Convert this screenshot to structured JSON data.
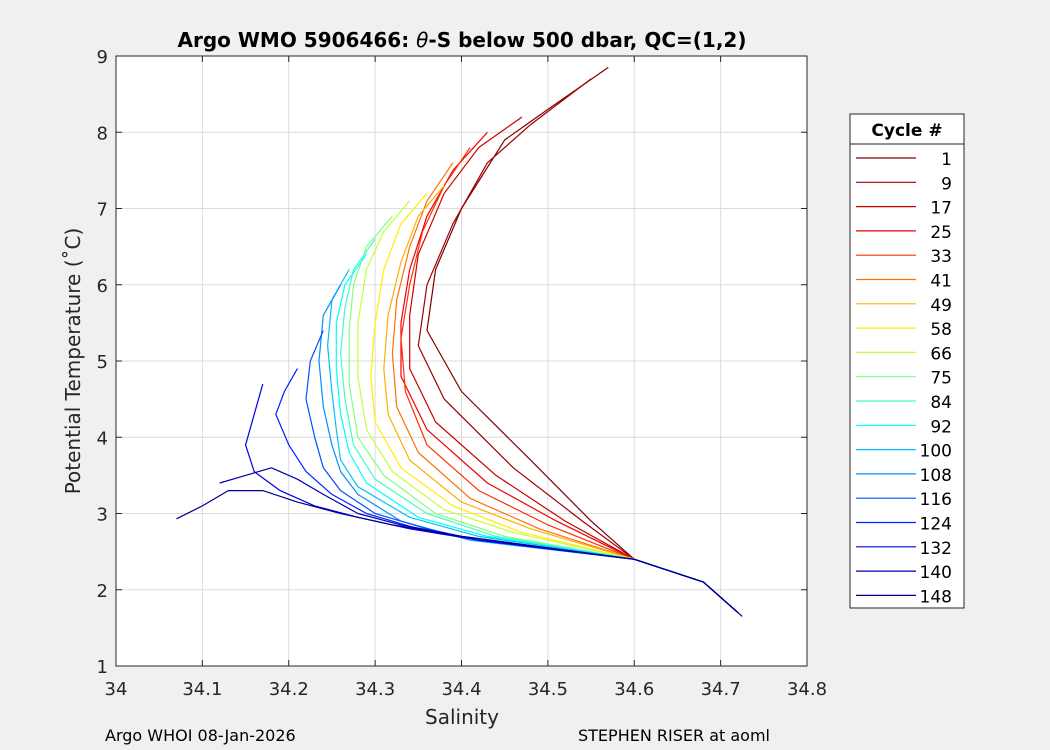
{
  "chart_data": {
    "type": "line",
    "title_prefix": "Argo WMO 5906466: ",
    "title_theta": "θ",
    "title_suffix": "-S below 500 dbar,  QC=(1,2)",
    "xlabel": "Salinity",
    "ylabel": "Potential Temperature (˚C)",
    "xlim": [
      34.0,
      34.8
    ],
    "ylim": [
      1,
      9
    ],
    "xticks": [
      "34",
      "34.1",
      "34.2",
      "34.3",
      "34.4",
      "34.5",
      "34.6",
      "34.7",
      "34.8"
    ],
    "yticks": [
      "1",
      "2",
      "3",
      "4",
      "5",
      "6",
      "7",
      "8",
      "9"
    ],
    "grid": true,
    "legend_title": "Cycle #",
    "legend_position": "right-outside",
    "legend_entries": [
      {
        "label": "1",
        "color": "#800000"
      },
      {
        "label": "9",
        "color": "#a00000"
      },
      {
        "label": "17",
        "color": "#c80000"
      },
      {
        "label": "25",
        "color": "#f00000"
      },
      {
        "label": "33",
        "color": "#ff3000"
      },
      {
        "label": "41",
        "color": "#ff7000"
      },
      {
        "label": "49",
        "color": "#ffb000"
      },
      {
        "label": "58",
        "color": "#ffee00"
      },
      {
        "label": "66",
        "color": "#c0ff40"
      },
      {
        "label": "75",
        "color": "#80ff80"
      },
      {
        "label": "84",
        "color": "#40ffc0"
      },
      {
        "label": "92",
        "color": "#00ffff"
      },
      {
        "label": "100",
        "color": "#00c0ff"
      },
      {
        "label": "108",
        "color": "#0090ff"
      },
      {
        "label": "116",
        "color": "#0050ff"
      },
      {
        "label": "124",
        "color": "#0020ff"
      },
      {
        "label": "132",
        "color": "#0000e0"
      },
      {
        "label": "140",
        "color": "#0000b0"
      },
      {
        "label": "148",
        "color": "#000090"
      }
    ],
    "series": [
      {
        "color": "#800000",
        "points": [
          [
            34.57,
            8.85
          ],
          [
            34.5,
            8.3
          ],
          [
            34.45,
            7.9
          ],
          [
            34.4,
            7.0
          ],
          [
            34.37,
            6.2
          ],
          [
            34.36,
            5.4
          ],
          [
            34.4,
            4.6
          ],
          [
            34.48,
            3.7
          ],
          [
            34.55,
            2.9
          ],
          [
            34.6,
            2.4
          ],
          [
            34.68,
            2.1
          ],
          [
            34.72,
            1.7
          ]
        ]
      },
      {
        "color": "#a00000",
        "points": [
          [
            34.55,
            8.7
          ],
          [
            34.48,
            8.1
          ],
          [
            34.43,
            7.6
          ],
          [
            34.39,
            6.8
          ],
          [
            34.36,
            6.0
          ],
          [
            34.35,
            5.2
          ],
          [
            34.38,
            4.5
          ],
          [
            34.46,
            3.6
          ],
          [
            34.54,
            2.9
          ],
          [
            34.6,
            2.4
          ],
          [
            34.68,
            2.1
          ],
          [
            34.72,
            1.7
          ]
        ]
      },
      {
        "color": "#c80000",
        "points": [
          [
            34.47,
            8.2
          ],
          [
            34.42,
            7.8
          ],
          [
            34.38,
            7.2
          ],
          [
            34.35,
            6.4
          ],
          [
            34.34,
            5.6
          ],
          [
            34.34,
            4.9
          ],
          [
            34.37,
            4.2
          ],
          [
            34.44,
            3.5
          ],
          [
            34.52,
            2.9
          ],
          [
            34.6,
            2.4
          ],
          [
            34.68,
            2.1
          ],
          [
            34.72,
            1.7
          ]
        ]
      },
      {
        "color": "#f00000",
        "points": [
          [
            34.43,
            8.0
          ],
          [
            34.39,
            7.5
          ],
          [
            34.36,
            6.9
          ],
          [
            34.34,
            6.2
          ],
          [
            34.33,
            5.5
          ],
          [
            34.33,
            4.8
          ],
          [
            34.36,
            4.1
          ],
          [
            34.43,
            3.4
          ],
          [
            34.51,
            2.9
          ],
          [
            34.6,
            2.4
          ],
          [
            34.68,
            2.1
          ],
          [
            34.72,
            1.7
          ]
        ]
      },
      {
        "color": "#ff3000",
        "points": [
          [
            34.41,
            7.8
          ],
          [
            34.38,
            7.3
          ],
          [
            34.355,
            6.7
          ],
          [
            34.34,
            6.0
          ],
          [
            34.33,
            5.3
          ],
          [
            34.335,
            4.6
          ],
          [
            34.36,
            3.9
          ],
          [
            34.42,
            3.3
          ],
          [
            34.5,
            2.85
          ],
          [
            34.6,
            2.4
          ],
          [
            34.68,
            2.1
          ],
          [
            34.72,
            1.7
          ]
        ]
      },
      {
        "color": "#ff7000",
        "points": [
          [
            34.39,
            7.6
          ],
          [
            34.36,
            7.1
          ],
          [
            34.34,
            6.5
          ],
          [
            34.325,
            5.8
          ],
          [
            34.32,
            5.1
          ],
          [
            34.325,
            4.4
          ],
          [
            34.35,
            3.8
          ],
          [
            34.41,
            3.2
          ],
          [
            34.49,
            2.8
          ],
          [
            34.6,
            2.4
          ],
          [
            34.68,
            2.1
          ],
          [
            34.72,
            1.7
          ]
        ]
      },
      {
        "color": "#ffb000",
        "points": [
          [
            34.38,
            7.3
          ],
          [
            34.35,
            6.9
          ],
          [
            34.33,
            6.3
          ],
          [
            34.315,
            5.6
          ],
          [
            34.31,
            4.9
          ],
          [
            34.315,
            4.3
          ],
          [
            34.34,
            3.7
          ],
          [
            34.4,
            3.15
          ],
          [
            34.48,
            2.8
          ],
          [
            34.6,
            2.4
          ],
          [
            34.68,
            2.1
          ],
          [
            34.72,
            1.7
          ]
        ]
      },
      {
        "color": "#ffee00",
        "points": [
          [
            34.36,
            7.2
          ],
          [
            34.33,
            6.8
          ],
          [
            34.31,
            6.2
          ],
          [
            34.3,
            5.5
          ],
          [
            34.295,
            4.8
          ],
          [
            34.3,
            4.2
          ],
          [
            34.33,
            3.6
          ],
          [
            34.39,
            3.1
          ],
          [
            34.47,
            2.75
          ],
          [
            34.6,
            2.4
          ],
          [
            34.68,
            2.1
          ],
          [
            34.72,
            1.7
          ]
        ]
      },
      {
        "color": "#c0ff40",
        "points": [
          [
            34.34,
            7.1
          ],
          [
            34.31,
            6.7
          ],
          [
            34.29,
            6.2
          ],
          [
            34.28,
            5.5
          ],
          [
            34.28,
            4.8
          ],
          [
            34.29,
            4.1
          ],
          [
            34.32,
            3.55
          ],
          [
            34.38,
            3.05
          ],
          [
            34.46,
            2.75
          ],
          [
            34.6,
            2.4
          ],
          [
            34.68,
            2.1
          ],
          [
            34.72,
            1.7
          ]
        ]
      },
      {
        "color": "#80ff80",
        "points": [
          [
            34.32,
            6.9
          ],
          [
            34.29,
            6.5
          ],
          [
            34.275,
            6.0
          ],
          [
            34.27,
            5.4
          ],
          [
            34.27,
            4.7
          ],
          [
            34.28,
            4.0
          ],
          [
            34.31,
            3.5
          ],
          [
            34.37,
            3.0
          ],
          [
            34.45,
            2.7
          ],
          [
            34.6,
            2.4
          ],
          [
            34.68,
            2.1
          ],
          [
            34.72,
            1.7
          ]
        ]
      },
      {
        "color": "#40ffc0",
        "points": [
          [
            34.3,
            6.6
          ],
          [
            34.275,
            6.2
          ],
          [
            34.265,
            5.7
          ],
          [
            34.26,
            5.1
          ],
          [
            34.265,
            4.5
          ],
          [
            34.275,
            3.9
          ],
          [
            34.3,
            3.45
          ],
          [
            34.36,
            3.0
          ],
          [
            34.44,
            2.7
          ],
          [
            34.6,
            2.4
          ],
          [
            34.68,
            2.1
          ],
          [
            34.72,
            1.7
          ]
        ]
      },
      {
        "color": "#00ffff",
        "points": [
          [
            34.29,
            6.4
          ],
          [
            34.265,
            6.0
          ],
          [
            34.255,
            5.5
          ],
          [
            34.255,
            4.9
          ],
          [
            34.26,
            4.3
          ],
          [
            34.27,
            3.8
          ],
          [
            34.29,
            3.4
          ],
          [
            34.35,
            2.95
          ],
          [
            34.43,
            2.7
          ],
          [
            34.6,
            2.4
          ],
          [
            34.68,
            2.1
          ],
          [
            34.72,
            1.7
          ]
        ]
      },
      {
        "color": "#00c0ff",
        "points": [
          [
            34.27,
            6.2
          ],
          [
            34.25,
            5.8
          ],
          [
            34.245,
            5.2
          ],
          [
            34.25,
            4.6
          ],
          [
            34.255,
            4.1
          ],
          [
            34.26,
            3.7
          ],
          [
            34.28,
            3.35
          ],
          [
            34.34,
            2.95
          ],
          [
            34.42,
            2.7
          ],
          [
            34.6,
            2.4
          ],
          [
            34.68,
            2.1
          ],
          [
            34.72,
            1.7
          ]
        ]
      },
      {
        "color": "#0090ff",
        "points": [
          [
            34.26,
            6.0
          ],
          [
            34.24,
            5.6
          ],
          [
            34.235,
            5.0
          ],
          [
            34.24,
            4.4
          ],
          [
            34.25,
            3.9
          ],
          [
            34.26,
            3.55
          ],
          [
            34.28,
            3.25
          ],
          [
            34.33,
            2.9
          ],
          [
            34.41,
            2.65
          ],
          [
            34.6,
            2.4
          ],
          [
            34.68,
            2.1
          ],
          [
            34.72,
            1.7
          ]
        ]
      },
      {
        "color": "#0050ff",
        "points": [
          [
            34.24,
            5.4
          ],
          [
            34.225,
            5.0
          ],
          [
            34.22,
            4.5
          ],
          [
            34.23,
            4.0
          ],
          [
            34.24,
            3.6
          ],
          [
            34.26,
            3.3
          ],
          [
            34.3,
            3.0
          ],
          [
            34.36,
            2.8
          ],
          [
            34.42,
            2.65
          ],
          [
            34.6,
            2.4
          ],
          [
            34.68,
            2.1
          ],
          [
            34.72,
            1.7
          ]
        ]
      },
      {
        "color": "#0020ff",
        "points": [
          [
            34.21,
            4.9
          ],
          [
            34.195,
            4.6
          ],
          [
            34.185,
            4.3
          ],
          [
            34.2,
            3.9
          ],
          [
            34.22,
            3.55
          ],
          [
            34.25,
            3.25
          ],
          [
            34.29,
            3.0
          ],
          [
            34.35,
            2.8
          ],
          [
            34.42,
            2.65
          ],
          [
            34.6,
            2.4
          ],
          [
            34.68,
            2.1
          ],
          [
            34.72,
            1.7
          ]
        ]
      },
      {
        "color": "#0000e0",
        "points": [
          [
            34.17,
            4.7
          ],
          [
            34.16,
            4.3
          ],
          [
            34.15,
            3.9
          ],
          [
            34.16,
            3.55
          ],
          [
            34.19,
            3.3
          ],
          [
            34.23,
            3.1
          ],
          [
            34.28,
            2.95
          ],
          [
            34.34,
            2.8
          ],
          [
            34.42,
            2.65
          ],
          [
            34.6,
            2.4
          ],
          [
            34.68,
            2.1
          ],
          [
            34.72,
            1.7
          ]
        ]
      },
      {
        "color": "#0000b0",
        "points": [
          [
            34.12,
            3.4
          ],
          [
            34.15,
            3.5
          ],
          [
            34.18,
            3.6
          ],
          [
            34.21,
            3.45
          ],
          [
            34.24,
            3.25
          ],
          [
            34.28,
            3.0
          ],
          [
            34.33,
            2.85
          ],
          [
            34.4,
            2.7
          ],
          [
            34.5,
            2.55
          ],
          [
            34.6,
            2.4
          ],
          [
            34.68,
            2.1
          ],
          [
            34.72,
            1.7
          ]
        ]
      },
      {
        "color": "#000090",
        "points": [
          [
            34.07,
            2.93
          ],
          [
            34.1,
            3.1
          ],
          [
            34.13,
            3.3
          ],
          [
            34.17,
            3.3
          ],
          [
            34.21,
            3.15
          ],
          [
            34.26,
            3.0
          ],
          [
            34.32,
            2.85
          ],
          [
            34.4,
            2.7
          ],
          [
            34.5,
            2.55
          ],
          [
            34.6,
            2.4
          ],
          [
            34.68,
            2.1
          ],
          [
            34.725,
            1.65
          ]
        ]
      }
    ]
  },
  "footer": {
    "left": "Argo WHOI 08-Jan-2026",
    "right": "STEPHEN RISER at aoml"
  }
}
